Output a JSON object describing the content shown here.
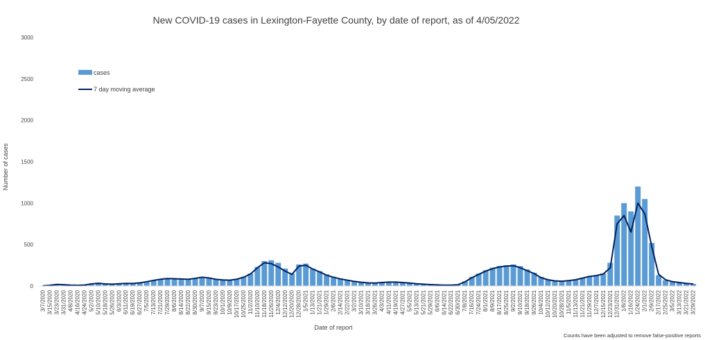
{
  "chart_data": {
    "type": "bar",
    "title": "New COVID-19 cases in Lexington-Fayette County, by date of report, as of 4/05/2022",
    "xlabel": "Date of report",
    "ylabel": "Number of cases",
    "footnote": "Counts have been adjusted to remove false-positive reports",
    "ylim": [
      0,
      3000
    ],
    "yticks": [
      0,
      500,
      1000,
      1500,
      2000,
      2500,
      3000
    ],
    "grid": false,
    "legend_position": "top-left",
    "colors": {
      "bars": "#5b9bd5",
      "line": "#002060"
    },
    "categories": [
      "3/7/2020",
      "3/15/2020",
      "3/23/2020",
      "3/31/2020",
      "4/8/2020",
      "4/16/2020",
      "4/24/2020",
      "5/2/2020",
      "5/10/2020",
      "5/18/2020",
      "5/26/2020",
      "6/3/2020",
      "6/11/2020",
      "6/19/2020",
      "6/27/2020",
      "7/5/2020",
      "7/13/2020",
      "7/21/2020",
      "7/29/2020",
      "8/6/2020",
      "8/14/2020",
      "8/22/2020",
      "8/30/2020",
      "9/7/2020",
      "9/15/2020",
      "9/23/2020",
      "10/1/2020",
      "10/9/2020",
      "10/17/2020",
      "10/25/2020",
      "11/2/2020",
      "11/10/2020",
      "11/18/2020",
      "11/26/2020",
      "12/4/2020",
      "12/12/2020",
      "12/20/2020",
      "12/28/2020",
      "1/5/2021",
      "1/13/2021",
      "1/21/2021",
      "1/29/2021",
      "2/6/2021",
      "2/14/2021",
      "2/22/2021",
      "3/2/2021",
      "3/10/2021",
      "3/18/2021",
      "3/26/2021",
      "4/3/2021",
      "4/11/2021",
      "4/19/2021",
      "4/27/2021",
      "5/5/2021",
      "5/13/2021",
      "5/21/2021",
      "5/29/2021",
      "6/6/2021",
      "6/14/2021",
      "6/22/2021",
      "6/30/2021",
      "7/8/2021",
      "7/16/2021",
      "7/24/2021",
      "8/1/2021",
      "8/9/2021",
      "8/17/2021",
      "8/25/2021",
      "9/2/2021",
      "9/10/2021",
      "9/18/2021",
      "9/26/2021",
      "10/4/2021",
      "10/12/2021",
      "10/20/2021",
      "10/28/2021",
      "11/5/2021",
      "11/13/2021",
      "11/21/2021",
      "11/29/2021",
      "12/7/2021",
      "12/15/2021",
      "12/23/2021",
      "12/31/2021",
      "1/8/2022",
      "1/16/2022",
      "1/24/2022",
      "2/1/2022",
      "2/9/2022",
      "2/17/2022",
      "2/25/2022",
      "3/5/2022",
      "3/13/2022",
      "3/21/2022",
      "3/29/2022"
    ],
    "series": [
      {
        "name": "cases",
        "type": "bar",
        "values": [
          3,
          10,
          22,
          18,
          12,
          8,
          15,
          30,
          40,
          25,
          22,
          28,
          35,
          30,
          40,
          55,
          70,
          85,
          95,
          90,
          85,
          80,
          95,
          110,
          100,
          80,
          75,
          70,
          85,
          110,
          150,
          230,
          300,
          310,
          280,
          210,
          150,
          260,
          270,
          210,
          180,
          140,
          110,
          90,
          75,
          60,
          50,
          40,
          38,
          45,
          50,
          50,
          45,
          40,
          30,
          25,
          20,
          15,
          12,
          10,
          15,
          55,
          110,
          150,
          190,
          220,
          240,
          250,
          260,
          240,
          200,
          160,
          110,
          80,
          65,
          60,
          70,
          80,
          100,
          120,
          130,
          150,
          280,
          850,
          1000,
          900,
          1200,
          1050,
          520,
          130,
          70,
          50,
          40,
          30,
          25
        ]
      },
      {
        "name": "7 day moving average",
        "type": "line",
        "values": [
          2,
          8,
          18,
          16,
          11,
          8,
          12,
          25,
          33,
          25,
          22,
          27,
          32,
          30,
          38,
          52,
          68,
          82,
          90,
          88,
          84,
          80,
          92,
          105,
          97,
          80,
          73,
          70,
          82,
          105,
          145,
          220,
          280,
          270,
          230,
          180,
          140,
          240,
          250,
          205,
          170,
          130,
          105,
          85,
          70,
          55,
          45,
          38,
          36,
          42,
          47,
          47,
          42,
          36,
          27,
          22,
          17,
          13,
          10,
          10,
          15,
          50,
          100,
          140,
          180,
          210,
          230,
          240,
          245,
          220,
          185,
          150,
          100,
          75,
          62,
          58,
          65,
          75,
          95,
          115,
          125,
          145,
          220,
          750,
          850,
          650,
          1000,
          870,
          480,
          140,
          75,
          52,
          42,
          32,
          24
        ]
      }
    ]
  }
}
